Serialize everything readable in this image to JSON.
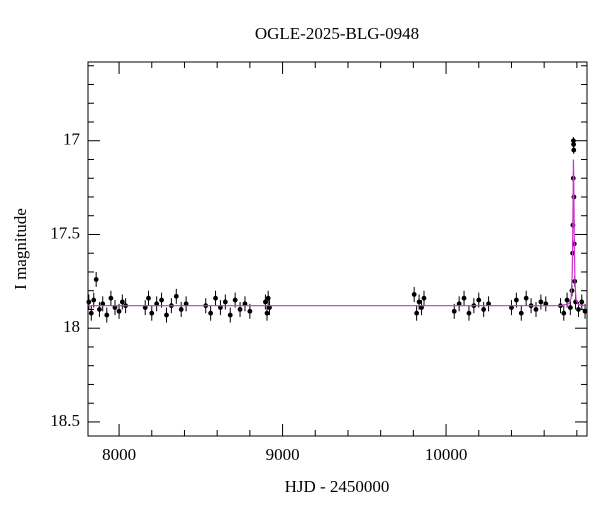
{
  "chart_data": {
    "type": "scatter",
    "title": "OGLE-2025-BLG-0948",
    "x_label": "HJD - 2450000",
    "y_label": "I magnitude",
    "xlim": [
      7810,
      10862
    ],
    "ylim": [
      16.58,
      18.575
    ],
    "y_inverted": true,
    "xticks": [
      8000,
      9000,
      10000
    ],
    "xticks_minor": [
      8200,
      8400,
      8600,
      8800,
      9200,
      9400,
      9600,
      9800,
      10200,
      10400,
      10600,
      10800
    ],
    "yticks": [
      17,
      17.5,
      18,
      18.5
    ],
    "yticks_minor": [
      16.6,
      16.7,
      16.8,
      16.9,
      17.1,
      17.2,
      17.3,
      17.4,
      17.6,
      17.7,
      17.8,
      17.9,
      18.1,
      18.2,
      18.3,
      18.4
    ],
    "series": [
      {
        "name": "data",
        "color": "#000000",
        "x": [
          7815,
          7830,
          7845,
          7860,
          7880,
          7900,
          7925,
          7950,
          7975,
          8000,
          8020,
          8040,
          8160,
          8180,
          8200,
          8230,
          8260,
          8290,
          8320,
          8350,
          8380,
          8410,
          8530,
          8560,
          8590,
          8620,
          8650,
          8680,
          8710,
          8740,
          8770,
          8800,
          8895,
          8905,
          8912,
          8920,
          9805,
          9820,
          9835,
          9850,
          9865,
          10050,
          10080,
          10110,
          10140,
          10170,
          10200,
          10230,
          10260,
          10400,
          10430,
          10460,
          10490,
          10520,
          10550,
          10580,
          10610,
          10700,
          10720,
          10740,
          10760,
          10770,
          10774,
          10776,
          10778,
          10779,
          10780,
          10781,
          10782,
          10784,
          10787,
          10792,
          10810,
          10830,
          10850
        ],
        "values": [
          17.86,
          17.92,
          17.85,
          17.74,
          17.9,
          17.87,
          17.93,
          17.84,
          17.89,
          17.91,
          17.86,
          17.88,
          17.89,
          17.84,
          17.92,
          17.87,
          17.85,
          17.93,
          17.88,
          17.83,
          17.9,
          17.87,
          17.88,
          17.92,
          17.84,
          17.89,
          17.86,
          17.93,
          17.85,
          17.9,
          17.87,
          17.91,
          17.86,
          17.92,
          17.84,
          17.89,
          17.82,
          17.92,
          17.86,
          17.89,
          17.84,
          17.91,
          17.87,
          17.84,
          17.92,
          17.88,
          17.85,
          17.9,
          17.87,
          17.89,
          17.85,
          17.92,
          17.84,
          17.88,
          17.9,
          17.86,
          17.87,
          17.88,
          17.92,
          17.85,
          17.89,
          17.8,
          17.6,
          17.45,
          17.2,
          17.0,
          17.02,
          17.05,
          17.3,
          17.55,
          17.75,
          17.86,
          17.9,
          17.86,
          17.91
        ],
        "errors": [
          0.04,
          0.04,
          0.04,
          0.04,
          0.04,
          0.04,
          0.04,
          0.04,
          0.04,
          0.04,
          0.04,
          0.04,
          0.04,
          0.04,
          0.04,
          0.04,
          0.04,
          0.04,
          0.04,
          0.04,
          0.04,
          0.04,
          0.04,
          0.04,
          0.04,
          0.04,
          0.04,
          0.04,
          0.04,
          0.04,
          0.04,
          0.04,
          0.04,
          0.04,
          0.04,
          0.04,
          0.04,
          0.04,
          0.04,
          0.04,
          0.04,
          0.04,
          0.04,
          0.04,
          0.04,
          0.04,
          0.04,
          0.04,
          0.04,
          0.04,
          0.04,
          0.04,
          0.04,
          0.04,
          0.04,
          0.04,
          0.04,
          0.04,
          0.04,
          0.04,
          0.04,
          0.03,
          0.02,
          0.02,
          0.02,
          0.02,
          0.02,
          0.02,
          0.02,
          0.02,
          0.03,
          0.04,
          0.04,
          0.04,
          0.04
        ]
      },
      {
        "name": "model",
        "type": "line",
        "color": "#cc33cc",
        "x": [
          7810,
          10700,
          10750,
          10765,
          10772,
          10776,
          10779,
          10781,
          10784,
          10788,
          10795,
          10810,
          10862
        ],
        "values": [
          17.88,
          17.88,
          17.87,
          17.84,
          17.7,
          17.4,
          17.1,
          17.2,
          17.5,
          17.75,
          17.85,
          17.875,
          17.88
        ]
      }
    ]
  }
}
